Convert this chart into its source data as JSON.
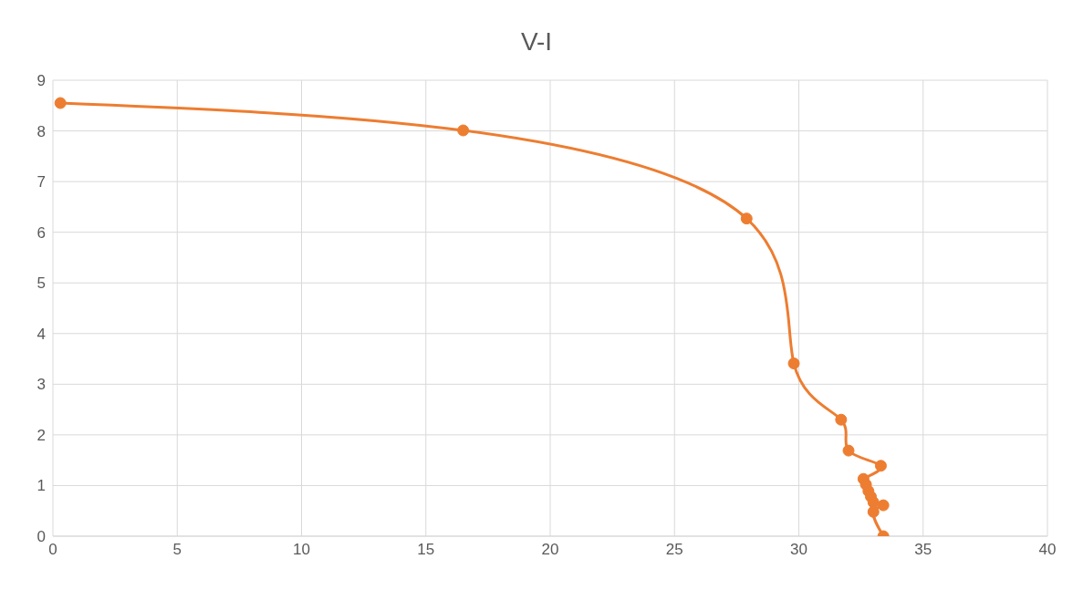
{
  "chart_data": {
    "type": "line",
    "title": "V-I",
    "x": [
      0.3,
      16.5,
      27.9,
      29.8,
      31.7,
      32.0,
      33.3,
      32.6,
      32.7,
      32.8,
      32.9,
      33.0,
      33.4,
      33.0,
      33.4
    ],
    "series": [
      {
        "color": "#ed7d31",
        "values": [
          8.55,
          8.01,
          6.27,
          3.41,
          2.3,
          1.69,
          1.39,
          1.13,
          1.02,
          0.89,
          0.78,
          0.67,
          0.61,
          0.48,
          0
        ]
      }
    ],
    "xlim": [
      0,
      40
    ],
    "xticks": [
      0,
      5,
      10,
      15,
      20,
      25,
      30,
      35,
      40
    ],
    "ylim": [
      0,
      9
    ],
    "yticks": [
      0,
      1,
      2,
      3,
      4,
      5,
      6,
      7,
      8,
      9
    ],
    "grid": true,
    "marker": "circle",
    "line_style": "solid"
  }
}
